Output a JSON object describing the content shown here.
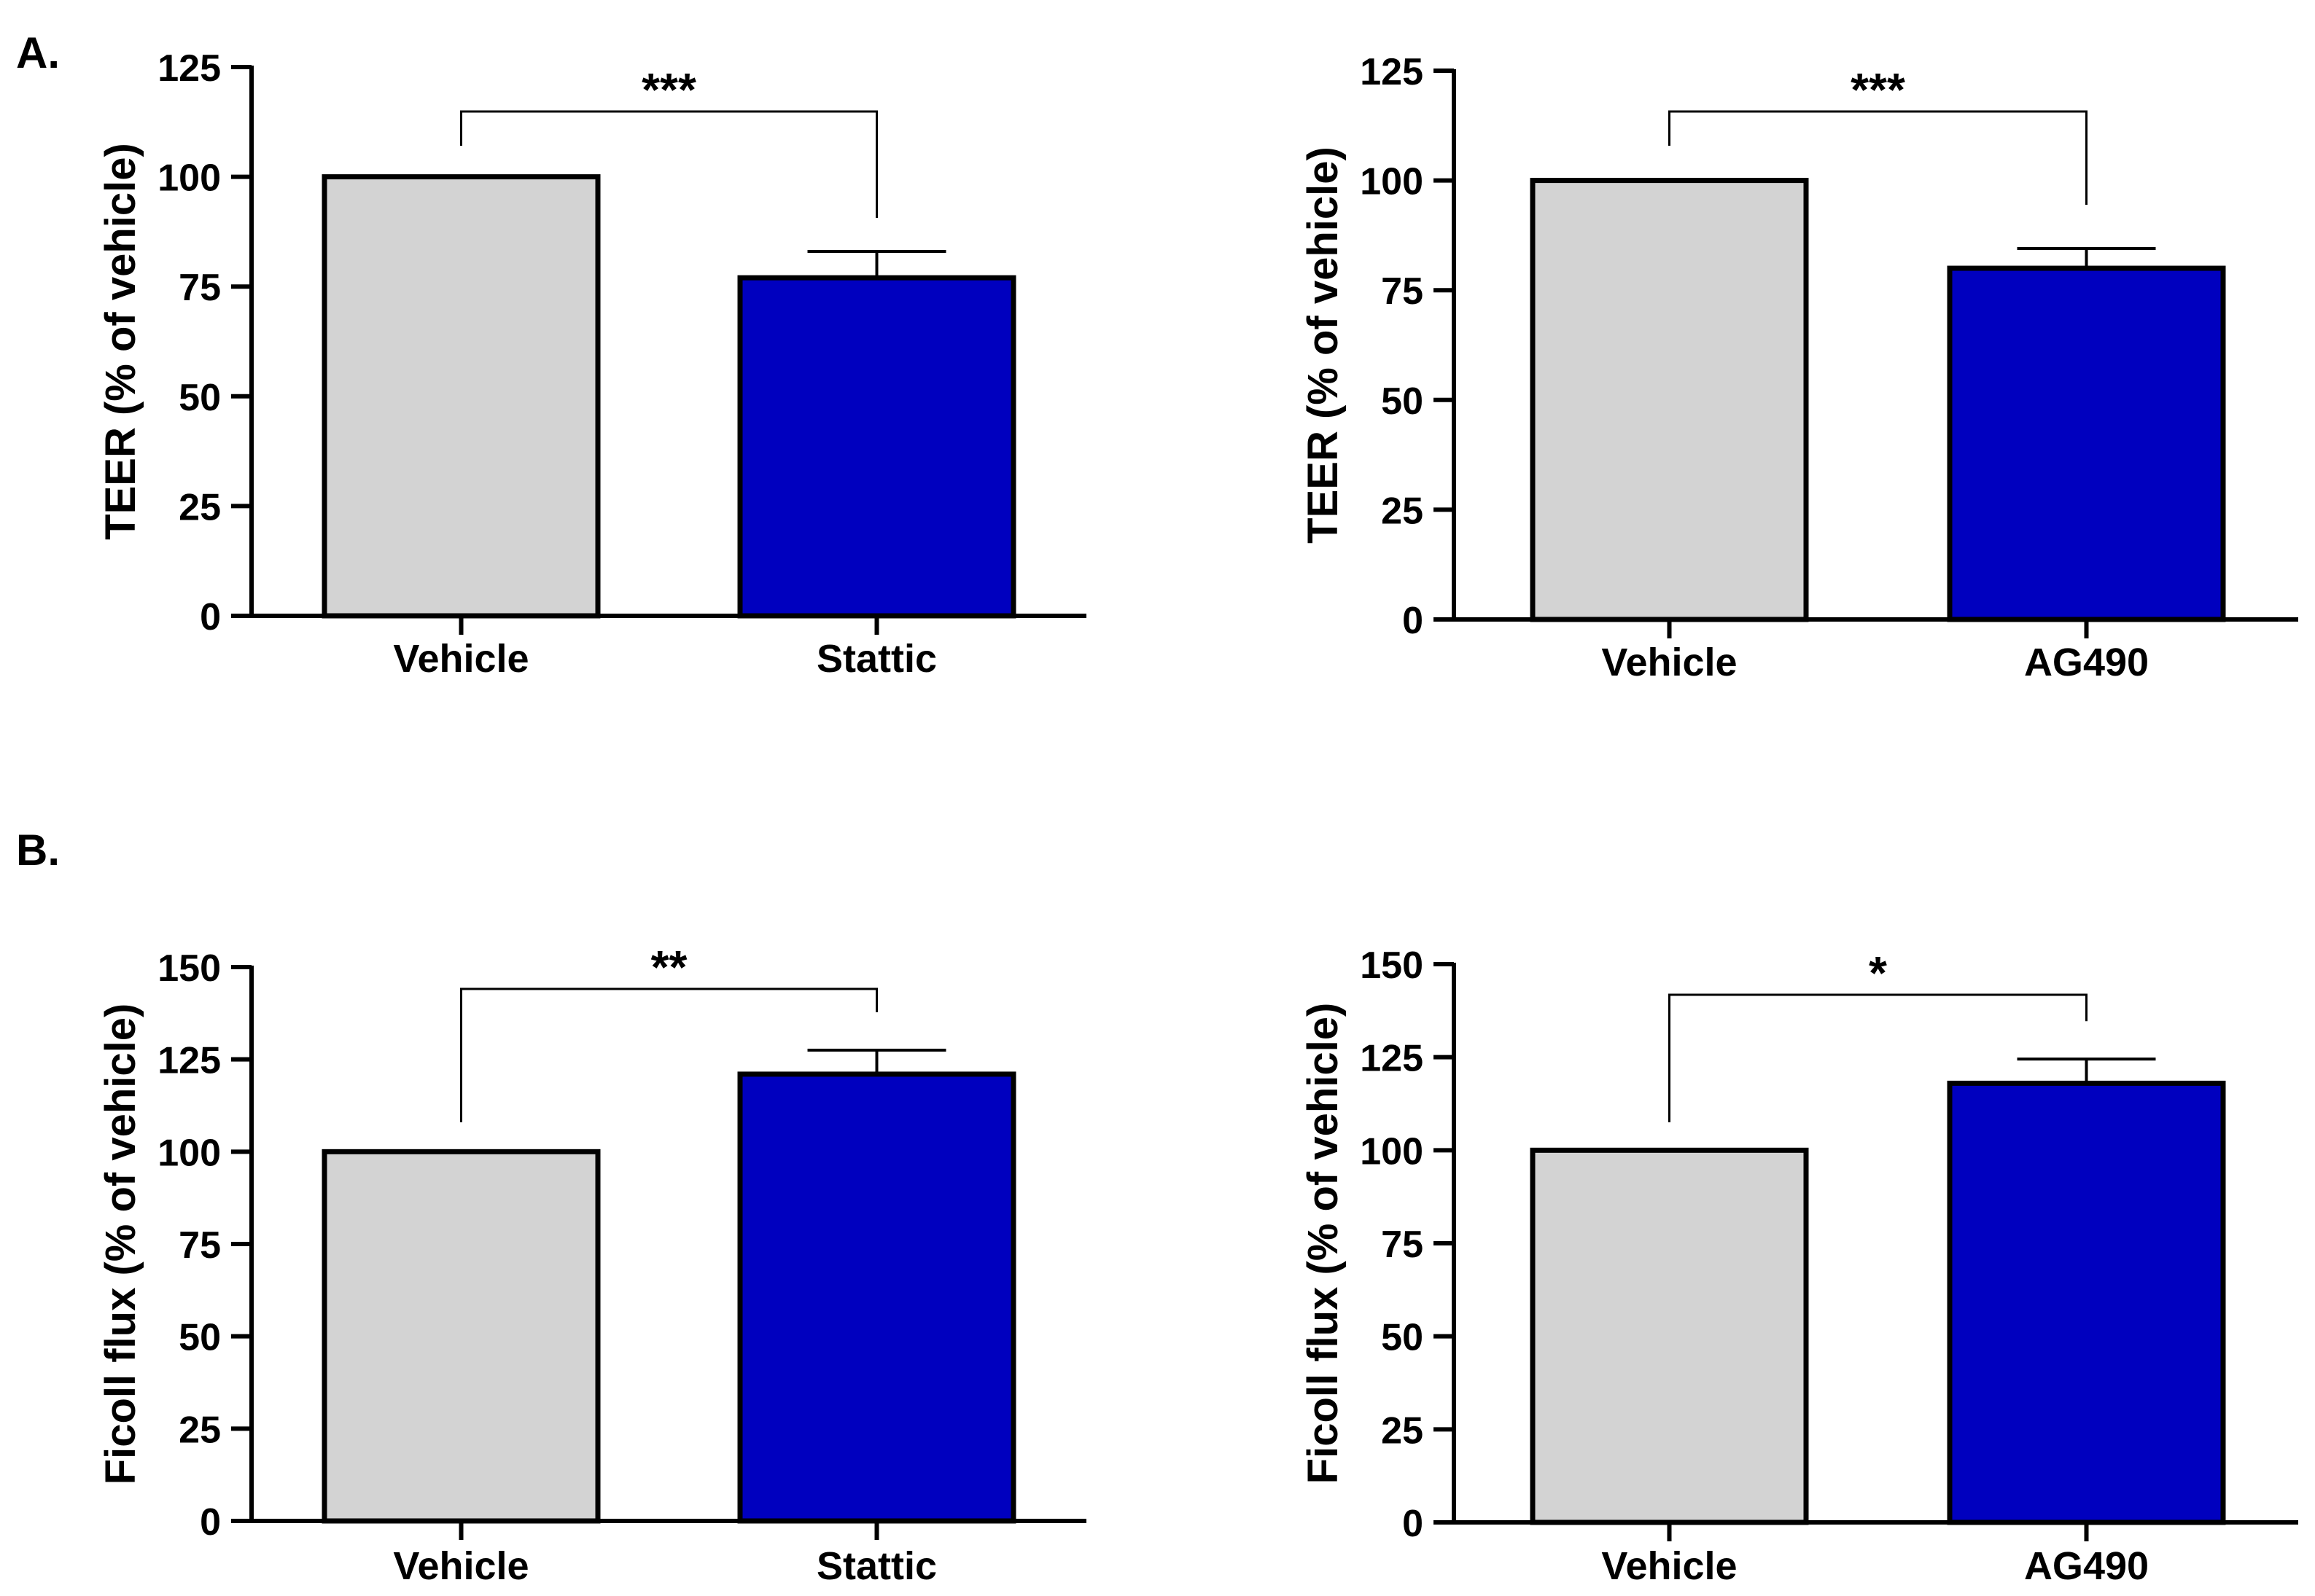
{
  "panels": [
    {
      "label": "A."
    },
    {
      "label": "B."
    }
  ],
  "colors": {
    "vehicle": "#d3d3d3",
    "treatment": "#0000bf",
    "stroke": "#000000"
  },
  "chart_data": [
    {
      "type": "bar",
      "panel": "A.",
      "title": "",
      "xlabel": "",
      "ylabel": "TEER  (% of vehicle)",
      "categories": [
        "Vehicle",
        "Stattic"
      ],
      "values": [
        100,
        77
      ],
      "errors": [
        0,
        6
      ],
      "ylim": [
        0,
        125
      ],
      "yticks": [
        "0",
        "25",
        "50",
        "75",
        "100",
        "125"
      ],
      "significance": "***",
      "bar_colors": [
        "#d3d3d3",
        "#0000bf"
      ]
    },
    {
      "type": "bar",
      "panel": "A.",
      "title": "",
      "xlabel": "",
      "ylabel": "TEER  (% of vehicle)",
      "categories": [
        "Vehicle",
        "AG490"
      ],
      "values": [
        100,
        80
      ],
      "errors": [
        0,
        4.5
      ],
      "ylim": [
        0,
        125
      ],
      "yticks": [
        "0",
        "25",
        "50",
        "75",
        "100",
        "125"
      ],
      "significance": "***",
      "bar_colors": [
        "#d3d3d3",
        "#0000bf"
      ]
    },
    {
      "type": "bar",
      "panel": "B.",
      "title": "",
      "xlabel": "",
      "ylabel": "Ficoll flux (% of vehicle)",
      "categories": [
        "Vehicle",
        "Stattic"
      ],
      "values": [
        100,
        121
      ],
      "errors": [
        0,
        6.5
      ],
      "ylim": [
        0,
        150
      ],
      "yticks": [
        "0",
        "25",
        "50",
        "75",
        "100",
        "125",
        "150"
      ],
      "significance": "**",
      "bar_colors": [
        "#d3d3d3",
        "#0000bf"
      ]
    },
    {
      "type": "bar",
      "panel": "B.",
      "title": "",
      "xlabel": "",
      "ylabel": "Ficoll flux (% of vehicle)",
      "categories": [
        "Vehicle",
        "AG490"
      ],
      "values": [
        100,
        118
      ],
      "errors": [
        0,
        6.5
      ],
      "ylim": [
        0,
        150
      ],
      "yticks": [
        "0",
        "25",
        "50",
        "75",
        "100",
        "125",
        "150"
      ],
      "significance": "*",
      "bar_colors": [
        "#d3d3d3",
        "#0000bf"
      ]
    }
  ]
}
